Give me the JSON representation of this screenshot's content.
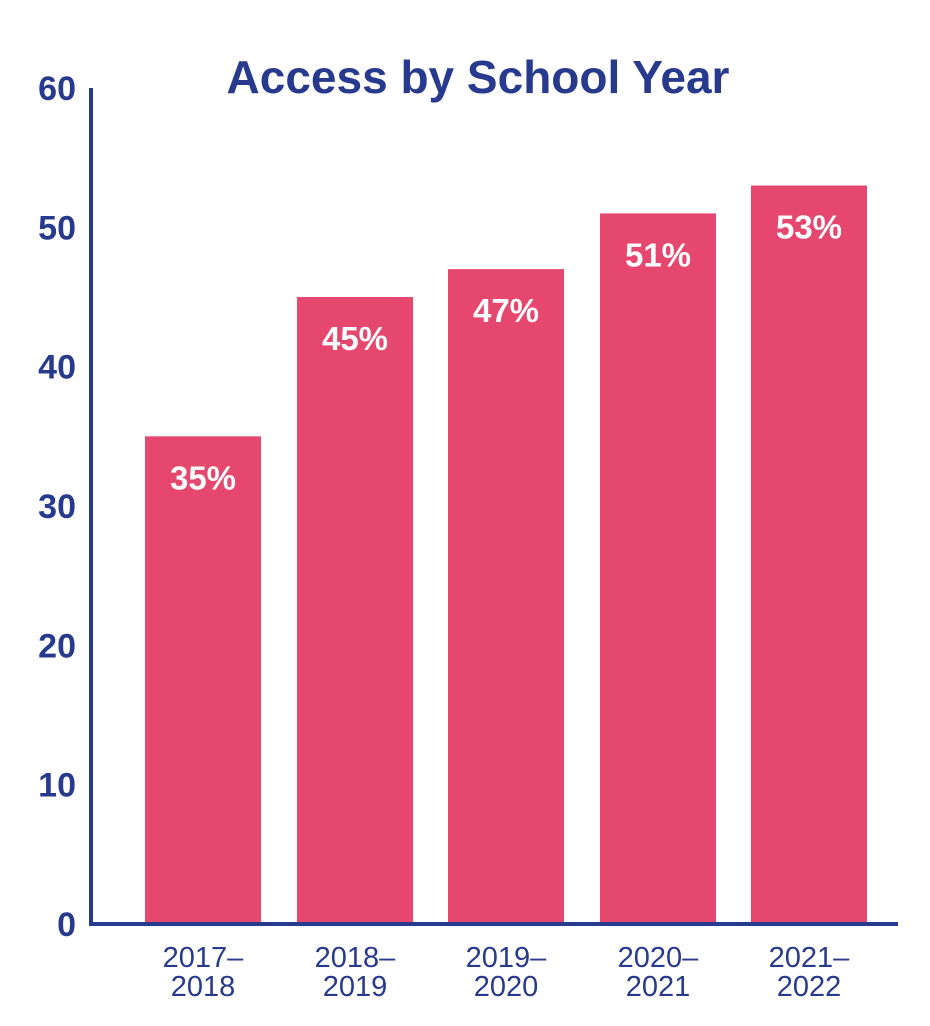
{
  "chart_data": {
    "type": "bar",
    "title": "Access by School Year",
    "xlabel": "",
    "ylabel": "",
    "categories": [
      [
        "2017–",
        "2018"
      ],
      [
        "2018–",
        "2019"
      ],
      [
        "2019–",
        "2020"
      ],
      [
        "2020–",
        "2021"
      ],
      [
        "2021–",
        "2022"
      ]
    ],
    "values": [
      35,
      45,
      47,
      51,
      53
    ],
    "data_labels": [
      "35%",
      "45%",
      "47%",
      "51%",
      "53%"
    ],
    "ylim": [
      0,
      60
    ],
    "yticks": [
      0,
      10,
      20,
      30,
      40,
      50,
      60
    ],
    "ytick_labels": [
      "0",
      "10",
      "20",
      "30",
      "40",
      "50",
      "60"
    ],
    "grid": false,
    "legend": "none",
    "colors": {
      "bar": "#e5476f",
      "axis": "#283a8e",
      "text": "#283a8e",
      "data_label": "#ffffff"
    }
  }
}
